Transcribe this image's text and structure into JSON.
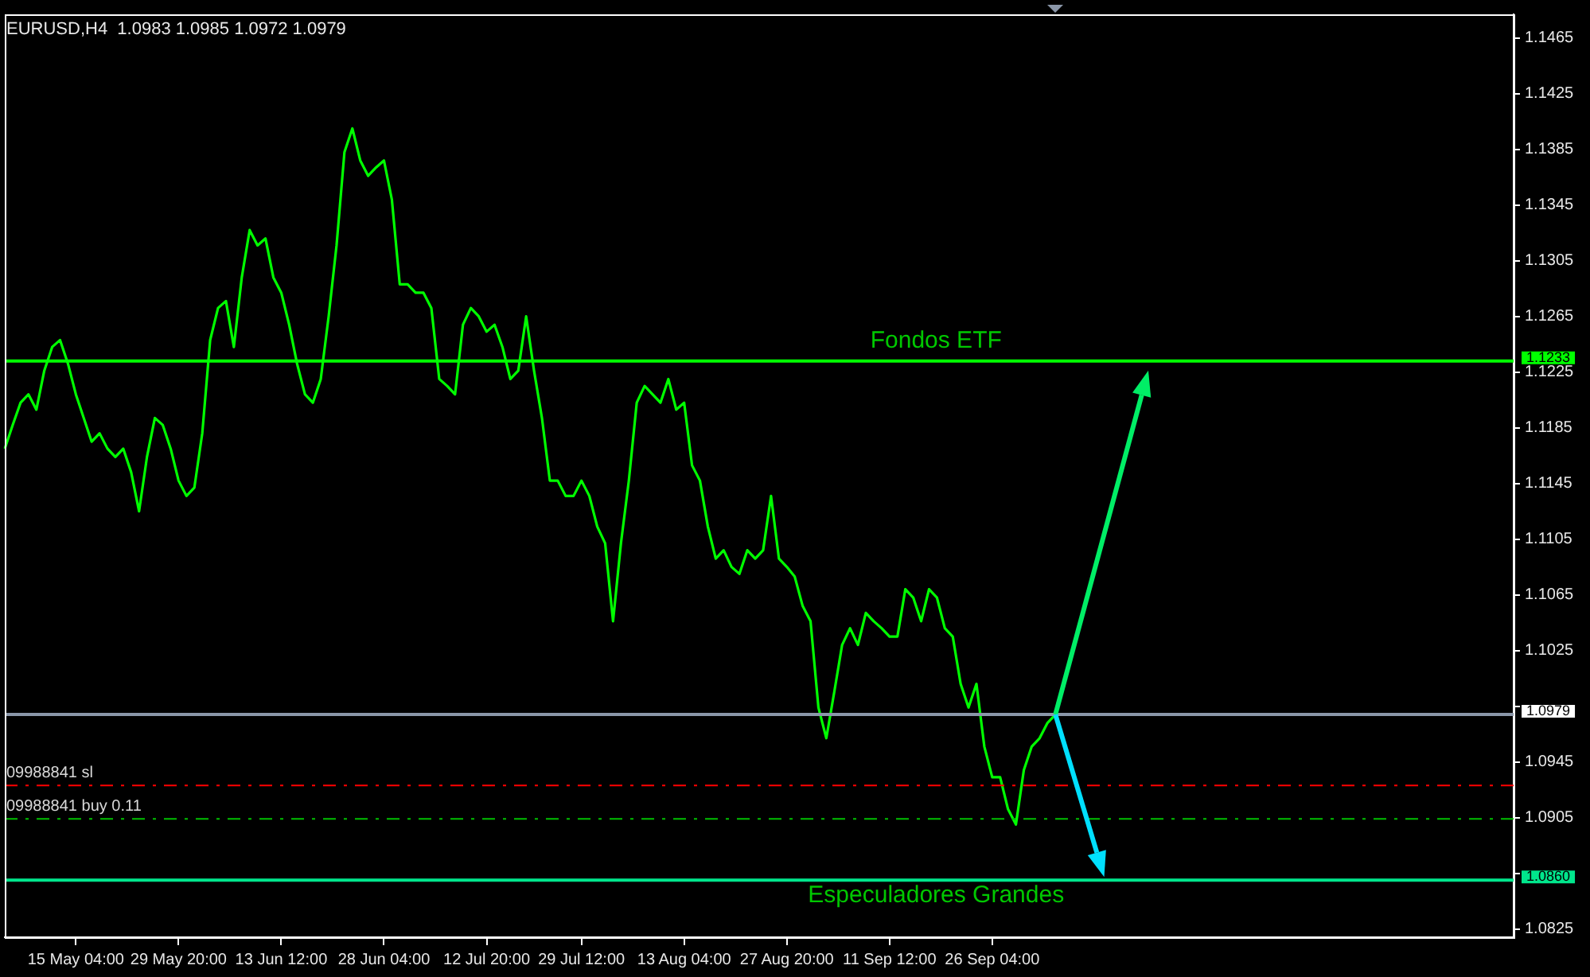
{
  "chart_data": {
    "type": "line",
    "title": "EURUSD,H4  1.0983 1.0985 1.0972 1.0979",
    "categories": [
      null,
      null,
      null,
      null,
      null,
      null,
      null,
      null,
      null,
      "15 May 04:00",
      null,
      null,
      null,
      null,
      null,
      null,
      null,
      null,
      null,
      null,
      null,
      null,
      "29 May 20:00",
      null,
      null,
      null,
      null,
      null,
      null,
      null,
      null,
      null,
      null,
      null,
      null,
      "13 Jun 12:00",
      null,
      null,
      null,
      null,
      null,
      null,
      null,
      null,
      null,
      null,
      null,
      null,
      "28 Jun 04:00",
      null,
      null,
      null,
      null,
      null,
      null,
      null,
      null,
      null,
      null,
      null,
      null,
      "12 Jul 20:00",
      null,
      null,
      null,
      null,
      null,
      null,
      null,
      null,
      null,
      null,
      null,
      "29 Jul 12:00",
      null,
      null,
      null,
      null,
      null,
      null,
      null,
      null,
      null,
      null,
      null,
      null,
      "13 Aug 04:00",
      null,
      null,
      null,
      null,
      null,
      null,
      null,
      null,
      null,
      null,
      null,
      null,
      "27 Aug 20:00",
      null,
      null,
      null,
      null,
      null,
      null,
      null,
      null,
      null,
      null,
      null,
      null,
      "11 Sep 12:00",
      null,
      null,
      null,
      null,
      null,
      null,
      null,
      null,
      null,
      null,
      null,
      null,
      "26 Sep 04:00",
      null,
      null,
      null,
      null,
      null,
      null,
      null,
      null,
      null,
      null,
      null,
      null,
      null,
      null,
      null,
      null,
      null,
      null,
      null,
      null,
      null,
      null,
      null,
      null,
      null,
      null,
      null,
      null,
      null,
      null,
      null,
      null,
      null,
      null,
      null,
      null,
      null,
      null,
      null,
      null,
      null,
      null,
      null,
      null,
      null,
      null,
      null,
      null,
      null,
      null,
      null,
      null,
      null,
      null,
      null,
      null,
      null,
      null,
      null,
      null,
      null,
      null,
      null,
      null,
      null,
      null
    ],
    "series": [
      {
        "color": "#00ff00",
        "values": [
          1.117,
          1.1187,
          1.1203,
          1.1209,
          1.1198,
          1.1226,
          1.1243,
          1.1248,
          1.1231,
          1.1209,
          1.1192,
          1.1175,
          1.1181,
          1.117,
          1.1164,
          1.117,
          1.1153,
          1.1125,
          1.1164,
          1.1192,
          1.1187,
          1.117,
          1.1147,
          1.1136,
          1.1142,
          1.1181,
          1.1248,
          1.1271,
          1.1276,
          1.1243,
          1.1293,
          1.1327,
          1.1316,
          1.1321,
          1.1293,
          1.1282,
          1.1259,
          1.1231,
          1.1209,
          1.1203,
          1.122,
          1.1265,
          1.1316,
          1.1383,
          1.14,
          1.1377,
          1.1366,
          1.1372,
          1.1377,
          1.1349,
          1.1288,
          1.1288,
          1.1282,
          1.1282,
          1.1271,
          1.122,
          1.1215,
          1.1209,
          1.1259,
          1.1271,
          1.1265,
          1.1254,
          1.1259,
          1.1243,
          1.122,
          1.1226,
          1.1265,
          1.1226,
          1.1192,
          1.1147,
          1.1147,
          1.1136,
          1.1136,
          1.1147,
          1.1136,
          1.1114,
          1.1102,
          1.1046,
          1.1102,
          1.1147,
          1.1203,
          1.1215,
          1.1209,
          1.1203,
          1.122,
          1.1198,
          1.1203,
          1.1158,
          1.1147,
          1.1114,
          1.1091,
          1.1097,
          1.1085,
          1.108,
          1.1097,
          1.1091,
          1.1097,
          1.1136,
          1.1091,
          1.1085,
          1.1078,
          1.1057,
          1.1046,
          1.0984,
          1.0962,
          1.0995,
          1.1029,
          1.1041,
          1.1029,
          1.1052,
          1.1046,
          1.1041,
          1.1035,
          1.1035,
          1.1069,
          1.1063,
          1.1046,
          1.1069,
          1.1063,
          1.1041,
          1.1035,
          1.1001,
          1.0984,
          1.1001,
          1.0956,
          1.0934,
          1.0934,
          1.0911,
          1.09,
          1.0939,
          1.0956,
          1.0962,
          1.0973,
          1.0979,
          null,
          null,
          null,
          null,
          null,
          null,
          null,
          null,
          null,
          null,
          null,
          null,
          null,
          null,
          null,
          null,
          null,
          null,
          null,
          null,
          null,
          null,
          null,
          null,
          null,
          null,
          null,
          null,
          null,
          null,
          null,
          null,
          null,
          null,
          null,
          null,
          null,
          null,
          null,
          null,
          null,
          null,
          null,
          null,
          null,
          null,
          null,
          null,
          null,
          null,
          null,
          null,
          null,
          null,
          null,
          null,
          null,
          null
        ]
      }
    ],
    "ylim": [
      1.0819,
      1.1482
    ],
    "yticks": [
      1.1465,
      1.1425,
      1.1385,
      1.1345,
      1.1305,
      1.1265,
      1.1225,
      1.1185,
      1.1145,
      1.1105,
      1.1065,
      1.1025,
      {
        "value": 1.0985,
        "label": null
      },
      1.0945,
      1.0905,
      {
        "value": 1.0865,
        "label": null
      },
      1.0825
    ],
    "ref_lines": [
      {
        "axis": "y",
        "value": 1.1233,
        "label": "Fondos ETF",
        "color": "#00ff00",
        "line_style": "solid"
      },
      {
        "axis": "y",
        "value": 1.086,
        "label": "Especuladores Grandes",
        "color": "#00e68c",
        "line_style": "solid"
      },
      {
        "axis": "y",
        "value": 1.0979,
        "label": null,
        "color": "#8a96a8",
        "line_style": "solid"
      },
      {
        "axis": "y",
        "value": 1.0928,
        "label": "09988841 sl",
        "color": "#ff0000",
        "line_style": "dashed"
      },
      {
        "axis": "y",
        "value": 1.0904,
        "label": "09988841 buy 0.11",
        "color": "#00c000",
        "line_style": "dashed"
      }
    ],
    "annotations": [
      "1.1233",
      "1.0860",
      "1.0979"
    ],
    "grid": false,
    "legend": false,
    "marker": "none",
    "line_style": "solid"
  }
}
